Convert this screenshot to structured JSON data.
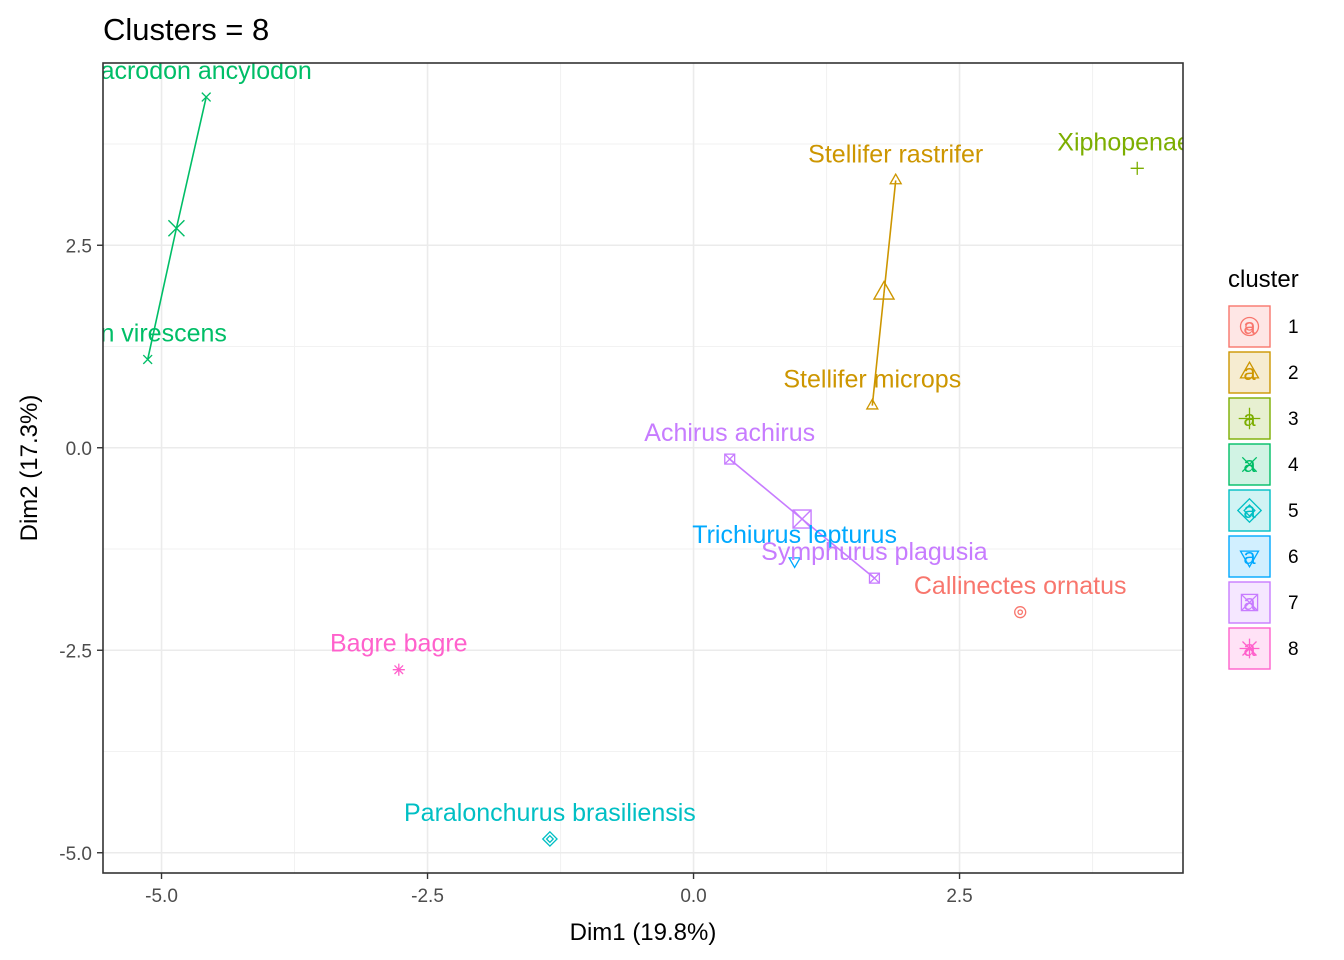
{
  "chart_data": {
    "type": "scatter",
    "title": "Clusters = 8",
    "xlabel": "Dim1 (19.8%)",
    "ylabel": "Dim2 (17.3%)",
    "xlim": [
      -5.55,
      4.6
    ],
    "ylim": [
      -5.25,
      4.75
    ],
    "x_ticks": [
      -5.0,
      -2.5,
      0.0,
      2.5
    ],
    "x_tick_labels": [
      "-5.0",
      "-2.5",
      "0.0",
      "2.5"
    ],
    "y_ticks": [
      -5.0,
      -2.5,
      0.0,
      2.5
    ],
    "y_tick_labels": [
      "-5.0",
      "-2.5",
      "0.0",
      "2.5"
    ],
    "grid": true,
    "legend": {
      "title": "cluster",
      "position": "right",
      "key_glyph": "a",
      "items": [
        {
          "label": "1",
          "color": "#F8766D",
          "shape": "circle-dot"
        },
        {
          "label": "2",
          "color": "#CD9600",
          "shape": "triangle"
        },
        {
          "label": "3",
          "color": "#7CAE00",
          "shape": "plus"
        },
        {
          "label": "4",
          "color": "#00BE67",
          "shape": "cross"
        },
        {
          "label": "5",
          "color": "#00BFC4",
          "shape": "diamond"
        },
        {
          "label": "6",
          "color": "#00A9FF",
          "shape": "triangle-down"
        },
        {
          "label": "7",
          "color": "#C77CFF",
          "shape": "square-cross"
        },
        {
          "label": "8",
          "color": "#FF61CC",
          "shape": "asterisk"
        }
      ]
    },
    "points": [
      {
        "label": "Callinectes ornatus",
        "x": 3.07,
        "y": -2.03,
        "cluster": 1
      },
      {
        "label": "Stellifer rastrifer",
        "x": 1.9,
        "y": 3.3,
        "cluster": 2
      },
      {
        "label": "Stellifer microps",
        "x": 1.68,
        "y": 0.52,
        "cluster": 2
      },
      {
        "label": "Xiphopenaeus",
        "x": 4.17,
        "y": 3.45,
        "cluster": 3
      },
      {
        "label": "acrodon ancylodon",
        "x": -4.58,
        "y": 4.33,
        "cluster": 4
      },
      {
        "label": "cion virescens",
        "x": -5.13,
        "y": 1.09,
        "cluster": 4
      },
      {
        "label": "Paralonchurus brasiliensis",
        "x": -1.35,
        "y": -4.83,
        "cluster": 5
      },
      {
        "label": "Trichiurus lepturus",
        "x": 0.95,
        "y": -1.4,
        "cluster": 6
      },
      {
        "label": "Achirus achirus",
        "x": 0.34,
        "y": -0.14,
        "cluster": 7
      },
      {
        "label": "Symphurus plagusia",
        "x": 1.7,
        "y": -1.61,
        "cluster": 7
      },
      {
        "label": "Bagre bagre",
        "x": -2.77,
        "y": -2.74,
        "cluster": 8
      }
    ],
    "centroids": [
      {
        "cluster": 2,
        "x": 1.79,
        "y": 1.91
      },
      {
        "cluster": 4,
        "x": -4.86,
        "y": 2.71
      },
      {
        "cluster": 7,
        "x": 1.02,
        "y": -0.88
      }
    ]
  }
}
